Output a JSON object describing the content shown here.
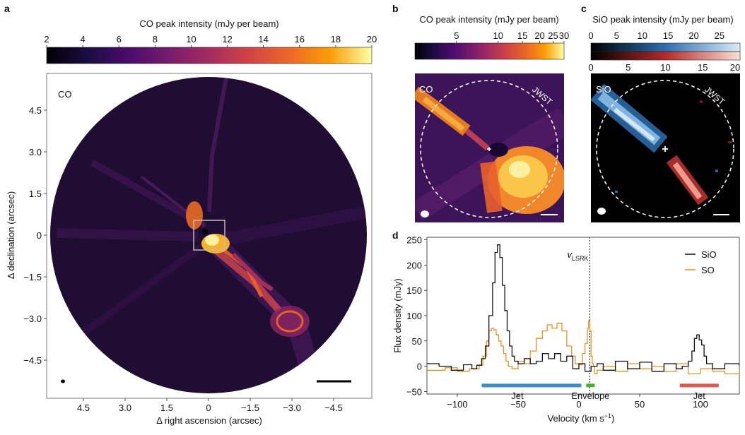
{
  "panels": {
    "a": {
      "letter": "a",
      "colorbar_title": "CO peak intensity (mJy per beam)",
      "colorbar_ticks": [
        "2",
        "4",
        "6",
        "8",
        "10",
        "12",
        "14",
        "16",
        "18",
        "20"
      ],
      "image_label": "CO",
      "x_ticks": [
        "4.5",
        "3.0",
        "1.5",
        "0",
        "−1.5",
        "−3.0",
        "−4.5"
      ],
      "y_ticks": [
        "4.5",
        "3.0",
        "1.5",
        "0",
        "−1.5",
        "−3.0",
        "−4.5"
      ],
      "xlabel": "Δ right ascension (arcsec)",
      "ylabel": "Δ declination (arcsec)"
    },
    "b": {
      "letter": "b",
      "colorbar_title": "CO peak intensity (mJy per beam)",
      "colorbar_ticks": [
        "5",
        "10",
        "15",
        "20",
        "25",
        "30"
      ],
      "image_label": "CO",
      "circle_label": "JWST"
    },
    "c": {
      "letter": "c",
      "colorbar_title": "SiO peak intensity (mJy per beam)",
      "colorbar_ticks_top": [
        "0",
        "5",
        "10",
        "15",
        "20",
        "25"
      ],
      "colorbar_ticks_bottom": [
        "0",
        "5",
        "10",
        "15",
        "20"
      ],
      "image_label": "SiO",
      "circle_label": "JWST"
    },
    "d": {
      "letter": "d"
    }
  },
  "chart_data": {
    "type": "line",
    "xlabel": "Velocity (km s",
    "xlabel_sup": "−1",
    "xlabel_end": ")",
    "ylabel": "Flux density (mJy)",
    "xlim": [
      -125,
      132
    ],
    "ylim": [
      -55,
      255
    ],
    "x_ticks": [
      -100,
      -50,
      0,
      50,
      100
    ],
    "x_tick_labels": [
      "−100",
      "−50",
      "0",
      "50",
      "100"
    ],
    "y_ticks": [
      -50,
      0,
      50,
      100,
      150,
      200,
      250
    ],
    "y_tick_labels": [
      "−50",
      "0",
      "50",
      "100",
      "150",
      "200",
      "250"
    ],
    "vlsr": {
      "x": 9,
      "label": "v",
      "label_sub": "LSRK"
    },
    "legend": {
      "position": "top-right",
      "entries": [
        "SiO",
        "SO"
      ]
    },
    "series": [
      {
        "name": "SiO",
        "color": "#111111",
        "x": [
          -125,
          -115,
          -105,
          -95,
          -88,
          -84,
          -80,
          -77,
          -74,
          -71,
          -69,
          -67,
          -65,
          -63,
          -61,
          -59,
          -57,
          -55,
          -53,
          -50,
          -45,
          -40,
          -35,
          -30,
          -25,
          -20,
          -15,
          -10,
          -5,
          0,
          5,
          10,
          15,
          20,
          30,
          40,
          50,
          60,
          70,
          80,
          85,
          90,
          93,
          95,
          97,
          99,
          101,
          103,
          105,
          110,
          120,
          132
        ],
        "y": [
          5,
          0,
          -8,
          3,
          -5,
          2,
          15,
          40,
          100,
          165,
          225,
          240,
          215,
          160,
          110,
          70,
          40,
          20,
          10,
          5,
          15,
          5,
          10,
          25,
          15,
          25,
          10,
          20,
          -5,
          5,
          -10,
          0,
          5,
          -8,
          10,
          -5,
          8,
          -10,
          5,
          -5,
          0,
          10,
          30,
          55,
          62,
          52,
          42,
          20,
          5,
          -5,
          5,
          0
        ]
      },
      {
        "name": "SO",
        "color": "#e8912b",
        "x": [
          -125,
          -110,
          -100,
          -90,
          -82,
          -79,
          -76,
          -74,
          -72,
          -70,
          -68,
          -66,
          -64,
          -62,
          -60,
          -58,
          -55,
          -50,
          -45,
          -40,
          -35,
          -30,
          -26,
          -22,
          -18,
          -14,
          -10,
          -6,
          -3,
          0,
          3,
          5,
          7,
          8,
          9,
          10,
          11,
          12,
          13,
          15,
          20,
          30,
          40,
          50,
          60,
          70,
          80,
          90,
          100,
          110,
          120,
          132
        ],
        "y": [
          -8,
          -3,
          -10,
          -5,
          2,
          20,
          50,
          70,
          75,
          72,
          62,
          50,
          40,
          25,
          10,
          0,
          -5,
          10,
          5,
          30,
          55,
          70,
          82,
          75,
          85,
          70,
          40,
          20,
          5,
          3,
          25,
          45,
          75,
          90,
          70,
          20,
          5,
          0,
          -15,
          -8,
          0,
          -10,
          5,
          -5,
          0,
          -10,
          5,
          -15,
          -5,
          -10,
          -15,
          0
        ]
      }
    ],
    "bars": [
      {
        "label": "Jet",
        "x0": -80,
        "x1": 2,
        "color": "#3d8cc4"
      },
      {
        "label": "Envelope",
        "x0": 6,
        "x1": 13,
        "color": "#4caa3c"
      },
      {
        "label": "Jet",
        "x0": 83,
        "x1": 115,
        "color": "#d95a4f"
      }
    ]
  }
}
